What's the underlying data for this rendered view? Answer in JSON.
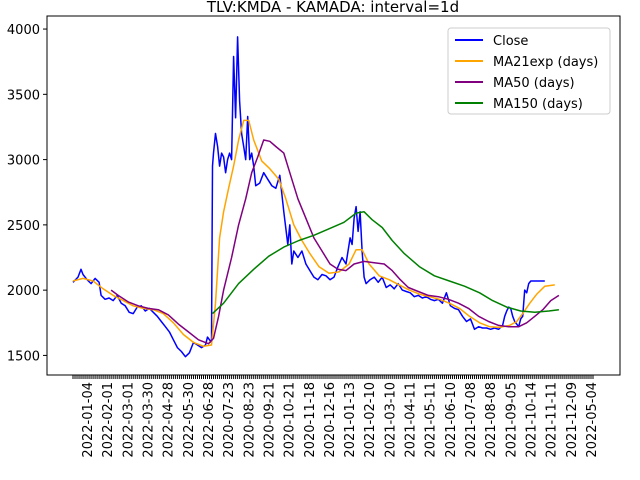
{
  "chart_data": {
    "type": "line",
    "title": "TLV:KMDA - KAMADA: interval=1d",
    "xlabel": "",
    "ylabel": "",
    "ylim": [
      1350,
      4100
    ],
    "yticks": [
      1500,
      2000,
      2500,
      3000,
      3500,
      4000
    ],
    "grid": false,
    "legend_position": "top-right",
    "x_tick_labels": [
      "2022-01-04",
      "2022-02-01",
      "2022-03-01",
      "2022-03-30",
      "2022-04-28",
      "2022-05-30",
      "2022-06-28",
      "2020-07-23",
      "2020-08-23",
      "2020-09-21",
      "2020-10-21",
      "2020-11-18",
      "2020-12-16",
      "2021-01-13",
      "2021-02-10",
      "2021-03-10",
      "2021-04-11",
      "2021-05-11",
      "2021-06-10",
      "2021-07-08",
      "2021-08-08",
      "2021-09-05",
      "2021-10-14",
      "2021-11-11",
      "2021-12-09",
      "2022-05-04"
    ],
    "x_count": 520,
    "series": [
      {
        "name": "Close",
        "color": "#0000ff",
        "points": [
          [
            0,
            2060
          ],
          [
            5,
            2100
          ],
          [
            8,
            2160
          ],
          [
            10,
            2120
          ],
          [
            14,
            2080
          ],
          [
            18,
            2050
          ],
          [
            22,
            2090
          ],
          [
            26,
            2060
          ],
          [
            28,
            1960
          ],
          [
            32,
            1930
          ],
          [
            36,
            1940
          ],
          [
            40,
            1920
          ],
          [
            44,
            1960
          ],
          [
            48,
            1900
          ],
          [
            52,
            1880
          ],
          [
            56,
            1830
          ],
          [
            60,
            1820
          ],
          [
            64,
            1870
          ],
          [
            68,
            1880
          ],
          [
            72,
            1840
          ],
          [
            76,
            1860
          ],
          [
            80,
            1830
          ],
          [
            84,
            1800
          ],
          [
            88,
            1760
          ],
          [
            92,
            1720
          ],
          [
            96,
            1680
          ],
          [
            100,
            1620
          ],
          [
            104,
            1560
          ],
          [
            108,
            1530
          ],
          [
            112,
            1490
          ],
          [
            116,
            1520
          ],
          [
            120,
            1600
          ],
          [
            124,
            1580
          ],
          [
            128,
            1560
          ],
          [
            132,
            1580
          ],
          [
            134,
            1640
          ],
          [
            136,
            1620
          ],
          [
            138,
            1600
          ],
          [
            139,
            2950
          ],
          [
            140,
            3050
          ],
          [
            142,
            3200
          ],
          [
            144,
            3100
          ],
          [
            146,
            2950
          ],
          [
            148,
            3050
          ],
          [
            150,
            3020
          ],
          [
            152,
            2900
          ],
          [
            154,
            3000
          ],
          [
            156,
            3050
          ],
          [
            158,
            3000
          ],
          [
            160,
            3790
          ],
          [
            162,
            3320
          ],
          [
            164,
            3940
          ],
          [
            166,
            3450
          ],
          [
            168,
            3200
          ],
          [
            170,
            3100
          ],
          [
            172,
            3000
          ],
          [
            174,
            3330
          ],
          [
            176,
            3000
          ],
          [
            178,
            3050
          ],
          [
            180,
            2950
          ],
          [
            182,
            2800
          ],
          [
            186,
            2820
          ],
          [
            190,
            2900
          ],
          [
            194,
            2850
          ],
          [
            198,
            2800
          ],
          [
            202,
            2780
          ],
          [
            206,
            2880
          ],
          [
            210,
            2600
          ],
          [
            214,
            2350
          ],
          [
            216,
            2500
          ],
          [
            218,
            2200
          ],
          [
            220,
            2300
          ],
          [
            224,
            2250
          ],
          [
            228,
            2300
          ],
          [
            232,
            2200
          ],
          [
            236,
            2150
          ],
          [
            240,
            2100
          ],
          [
            244,
            2080
          ],
          [
            248,
            2120
          ],
          [
            252,
            2110
          ],
          [
            256,
            2080
          ],
          [
            260,
            2100
          ],
          [
            264,
            2180
          ],
          [
            268,
            2250
          ],
          [
            272,
            2200
          ],
          [
            276,
            2400
          ],
          [
            278,
            2350
          ],
          [
            280,
            2550
          ],
          [
            282,
            2640
          ],
          [
            284,
            2450
          ],
          [
            286,
            2600
          ],
          [
            288,
            2300
          ],
          [
            290,
            2100
          ],
          [
            292,
            2050
          ],
          [
            296,
            2080
          ],
          [
            300,
            2100
          ],
          [
            304,
            2060
          ],
          [
            308,
            2100
          ],
          [
            312,
            2020
          ],
          [
            316,
            2040
          ],
          [
            320,
            2010
          ],
          [
            324,
            2050
          ],
          [
            328,
            2000
          ],
          [
            332,
            1990
          ],
          [
            336,
            1980
          ],
          [
            340,
            1950
          ],
          [
            344,
            1960
          ],
          [
            348,
            1940
          ],
          [
            352,
            1950
          ],
          [
            356,
            1930
          ],
          [
            360,
            1920
          ],
          [
            364,
            1930
          ],
          [
            368,
            1900
          ],
          [
            372,
            1980
          ],
          [
            376,
            1880
          ],
          [
            380,
            1860
          ],
          [
            384,
            1850
          ],
          [
            388,
            1800
          ],
          [
            392,
            1760
          ],
          [
            396,
            1780
          ],
          [
            400,
            1700
          ],
          [
            404,
            1720
          ],
          [
            408,
            1710
          ],
          [
            412,
            1710
          ],
          [
            416,
            1700
          ],
          [
            420,
            1710
          ],
          [
            424,
            1700
          ],
          [
            428,
            1730
          ],
          [
            430,
            1800
          ],
          [
            432,
            1840
          ],
          [
            434,
            1870
          ],
          [
            436,
            1860
          ],
          [
            438,
            1800
          ],
          [
            440,
            1760
          ],
          [
            442,
            1740
          ],
          [
            444,
            1720
          ],
          [
            446,
            1780
          ],
          [
            448,
            1800
          ],
          [
            450,
            2000
          ],
          [
            452,
            1980
          ],
          [
            454,
            2050
          ],
          [
            456,
            2070
          ],
          [
            460,
            2070
          ],
          [
            466,
            2070
          ],
          [
            470,
            2070
          ]
        ]
      },
      {
        "name": "MA21exp (days)",
        "color": "#ffa500",
        "points": [
          [
            0,
            2070
          ],
          [
            10,
            2090
          ],
          [
            20,
            2070
          ],
          [
            30,
            2010
          ],
          [
            40,
            1960
          ],
          [
            50,
            1920
          ],
          [
            60,
            1880
          ],
          [
            70,
            1860
          ],
          [
            80,
            1850
          ],
          [
            90,
            1820
          ],
          [
            100,
            1750
          ],
          [
            110,
            1660
          ],
          [
            120,
            1600
          ],
          [
            130,
            1570
          ],
          [
            138,
            1580
          ],
          [
            142,
            1900
          ],
          [
            146,
            2400
          ],
          [
            150,
            2600
          ],
          [
            155,
            2780
          ],
          [
            160,
            2950
          ],
          [
            165,
            3150
          ],
          [
            170,
            3300
          ],
          [
            175,
            3300
          ],
          [
            180,
            3150
          ],
          [
            188,
            2990
          ],
          [
            196,
            2930
          ],
          [
            205,
            2850
          ],
          [
            212,
            2700
          ],
          [
            220,
            2500
          ],
          [
            228,
            2380
          ],
          [
            236,
            2280
          ],
          [
            245,
            2180
          ],
          [
            255,
            2130
          ],
          [
            265,
            2140
          ],
          [
            275,
            2200
          ],
          [
            282,
            2310
          ],
          [
            288,
            2310
          ],
          [
            295,
            2200
          ],
          [
            305,
            2110
          ],
          [
            315,
            2080
          ],
          [
            325,
            2040
          ],
          [
            335,
            2000
          ],
          [
            345,
            1970
          ],
          [
            355,
            1950
          ],
          [
            365,
            1930
          ],
          [
            375,
            1900
          ],
          [
            385,
            1860
          ],
          [
            395,
            1800
          ],
          [
            405,
            1750
          ],
          [
            415,
            1720
          ],
          [
            425,
            1715
          ],
          [
            435,
            1730
          ],
          [
            442,
            1760
          ],
          [
            448,
            1820
          ],
          [
            455,
            1900
          ],
          [
            462,
            1970
          ],
          [
            470,
            2030
          ],
          [
            480,
            2040
          ]
        ]
      },
      {
        "name": "MA50 (days)",
        "color": "#800080",
        "points": [
          [
            38,
            2000
          ],
          [
            45,
            1960
          ],
          [
            55,
            1910
          ],
          [
            65,
            1880
          ],
          [
            75,
            1860
          ],
          [
            85,
            1850
          ],
          [
            95,
            1810
          ],
          [
            105,
            1740
          ],
          [
            115,
            1680
          ],
          [
            125,
            1620
          ],
          [
            135,
            1590
          ],
          [
            140,
            1630
          ],
          [
            145,
            1800
          ],
          [
            150,
            2000
          ],
          [
            158,
            2250
          ],
          [
            165,
            2500
          ],
          [
            172,
            2700
          ],
          [
            178,
            2900
          ],
          [
            184,
            3020
          ],
          [
            190,
            3150
          ],
          [
            196,
            3140
          ],
          [
            202,
            3100
          ],
          [
            210,
            3050
          ],
          [
            216,
            2900
          ],
          [
            224,
            2700
          ],
          [
            232,
            2550
          ],
          [
            240,
            2400
          ],
          [
            248,
            2300
          ],
          [
            256,
            2200
          ],
          [
            264,
            2160
          ],
          [
            272,
            2150
          ],
          [
            280,
            2200
          ],
          [
            290,
            2220
          ],
          [
            300,
            2210
          ],
          [
            310,
            2200
          ],
          [
            318,
            2150
          ],
          [
            326,
            2080
          ],
          [
            334,
            2020
          ],
          [
            344,
            1990
          ],
          [
            354,
            1960
          ],
          [
            364,
            1950
          ],
          [
            374,
            1930
          ],
          [
            384,
            1900
          ],
          [
            394,
            1860
          ],
          [
            404,
            1800
          ],
          [
            414,
            1760
          ],
          [
            424,
            1730
          ],
          [
            434,
            1720
          ],
          [
            444,
            1720
          ],
          [
            452,
            1750
          ],
          [
            460,
            1800
          ],
          [
            468,
            1850
          ],
          [
            476,
            1920
          ],
          [
            484,
            1960
          ]
        ]
      },
      {
        "name": "MA150 (days)",
        "color": "#008000",
        "points": [
          [
            139,
            1820
          ],
          [
            150,
            1900
          ],
          [
            165,
            2050
          ],
          [
            180,
            2160
          ],
          [
            195,
            2260
          ],
          [
            210,
            2330
          ],
          [
            225,
            2380
          ],
          [
            240,
            2420
          ],
          [
            255,
            2470
          ],
          [
            270,
            2520
          ],
          [
            282,
            2590
          ],
          [
            290,
            2600
          ],
          [
            298,
            2540
          ],
          [
            308,
            2480
          ],
          [
            318,
            2380
          ],
          [
            330,
            2280
          ],
          [
            345,
            2180
          ],
          [
            360,
            2110
          ],
          [
            375,
            2070
          ],
          [
            390,
            2030
          ],
          [
            405,
            1980
          ],
          [
            418,
            1920
          ],
          [
            432,
            1870
          ],
          [
            446,
            1840
          ],
          [
            460,
            1830
          ],
          [
            474,
            1840
          ],
          [
            484,
            1850
          ]
        ]
      }
    ]
  }
}
